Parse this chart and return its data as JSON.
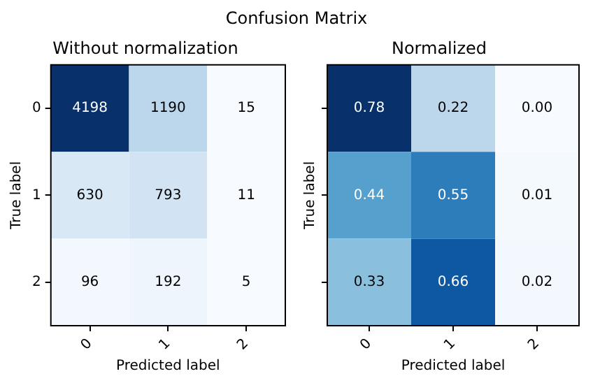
{
  "chart_data": [
    {
      "type": "heatmap",
      "title": "Confusion Matrix",
      "subtitle": "Without normalization",
      "xlabel": "Predicted label",
      "ylabel": "True label",
      "categories": [
        "0",
        "1",
        "2"
      ],
      "y_categories": [
        "0",
        "1",
        "2"
      ],
      "cells": [
        [
          4198,
          1190,
          15
        ],
        [
          630,
          793,
          11
        ],
        [
          96,
          192,
          5
        ]
      ],
      "data_labels": true
    },
    {
      "type": "heatmap",
      "subtitle": "Normalized",
      "xlabel": "Predicted label",
      "ylabel": "True label",
      "categories": [
        "0",
        "1",
        "2"
      ],
      "y_categories": [
        "0",
        "1",
        "2"
      ],
      "cells": [
        [
          0.78,
          0.22,
          0.0
        ],
        [
          0.44,
          0.55,
          0.01
        ],
        [
          0.33,
          0.66,
          0.02
        ]
      ],
      "cell_labels": [
        [
          "0.78",
          "0.22",
          "0.00"
        ],
        [
          "0.44",
          "0.55",
          "0.01"
        ],
        [
          "0.33",
          "0.66",
          "0.02"
        ]
      ],
      "data_labels": true,
      "tick_labels": "x"
    }
  ]
}
